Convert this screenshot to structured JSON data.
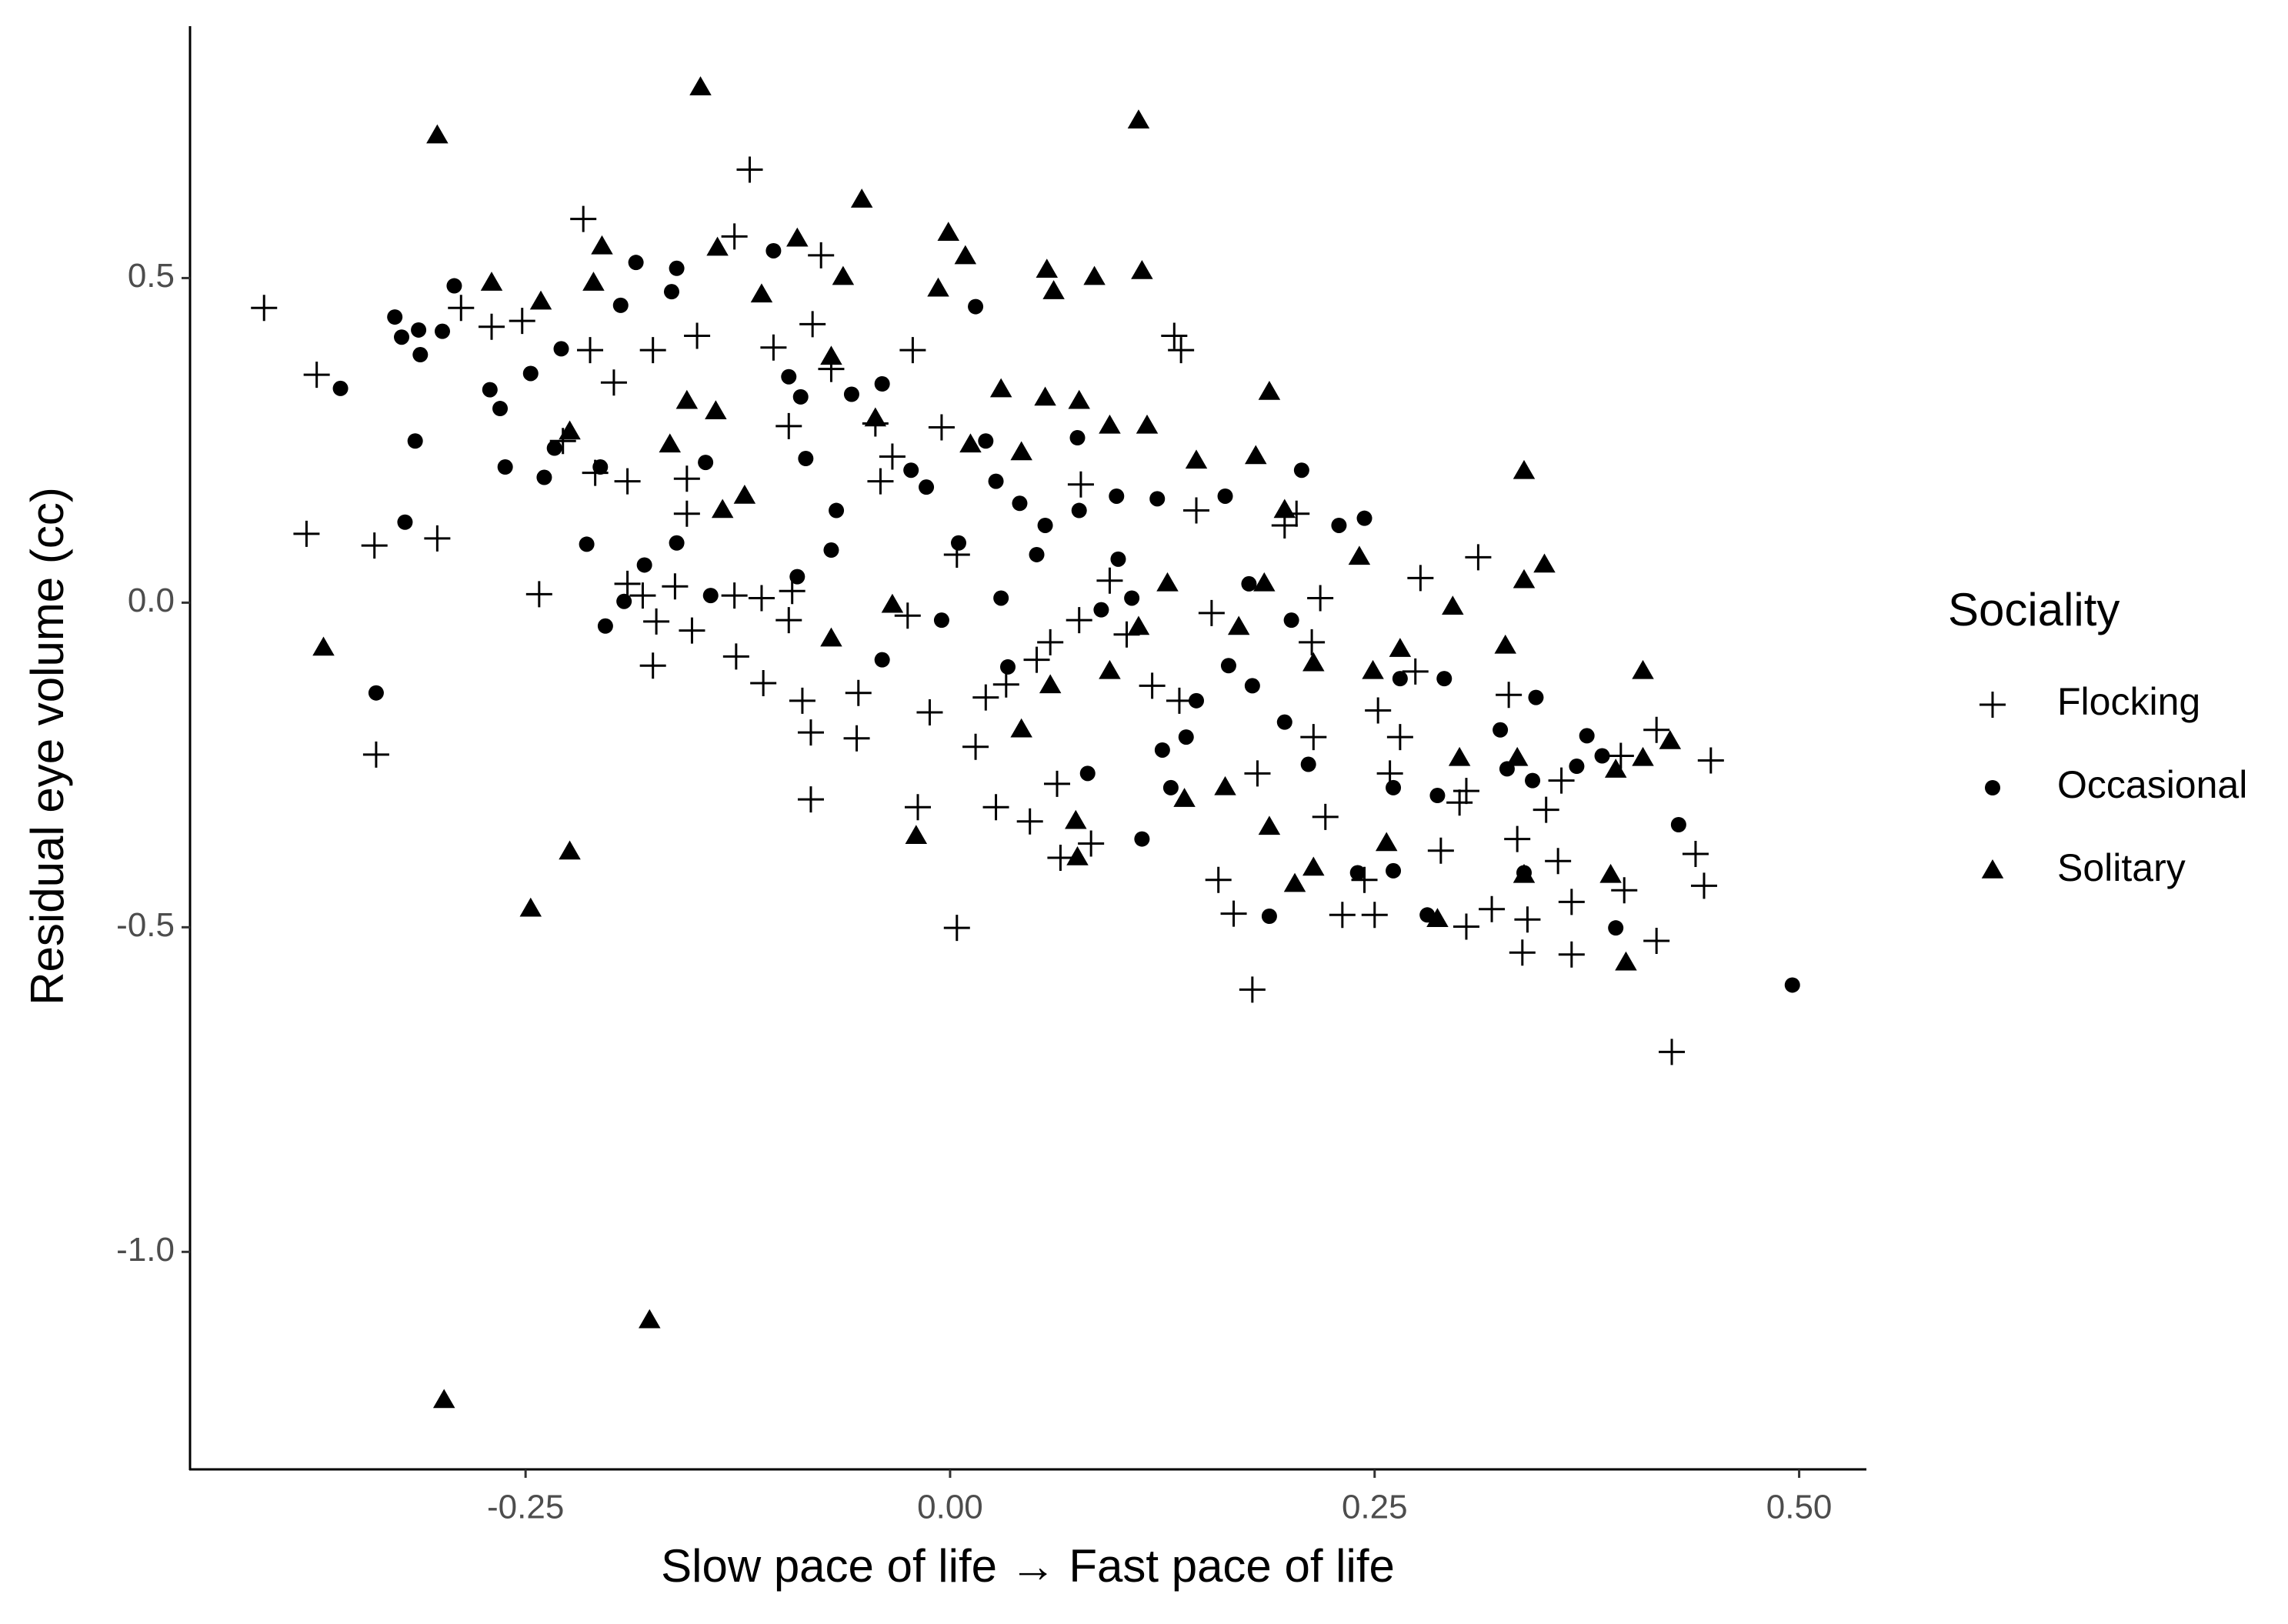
{
  "chart_data": {
    "type": "scatter",
    "x_label": "Slow pace of life → Fast pace of life",
    "y_label": "Residual eye volume (cc)",
    "legend_title": "Sociality",
    "xlim": [
      -0.4476,
      0.5387
    ],
    "ylim": [
      -1.335,
      0.888
    ],
    "xticks": [
      {
        "value": -0.25,
        "label": "-0.25"
      },
      {
        "value": 0,
        "label": "0.00"
      },
      {
        "value": 0.25,
        "label": "0.25"
      },
      {
        "value": 0.5,
        "label": "0.50"
      }
    ],
    "yticks": [
      {
        "value": -1,
        "label": "-1.0"
      },
      -0.5,
      {
        "value": 0,
        "label": "0.0"
      },
      {
        "value": 0.5,
        "label": "0.5"
      }
    ],
    "grid": false,
    "series": [
      {
        "name": "Flocking",
        "marker": "plus",
        "color": "#000000",
        "x": [
          -0.404,
          -0.373,
          -0.379,
          -0.339,
          -0.302,
          -0.338,
          -0.118,
          -0.216,
          -0.127,
          -0.288,
          -0.27,
          -0.252,
          -0.212,
          -0.198,
          -0.175,
          -0.149,
          -0.104,
          -0.081,
          -0.076,
          -0.022,
          -0.005,
          -0.044,
          -0.034,
          -0.041,
          -0.228,
          -0.209,
          -0.19,
          -0.155,
          -0.155,
          -0.242,
          -0.181,
          -0.162,
          -0.173,
          -0.152,
          -0.175,
          -0.127,
          -0.111,
          -0.126,
          -0.11,
          -0.093,
          -0.095,
          -0.087,
          -0.082,
          -0.082,
          -0.054,
          -0.055,
          -0.025,
          -0.012,
          -0.019,
          0.004,
          0.015,
          0.021,
          0.027,
          0.047,
          0.063,
          0.083,
          0.065,
          0.059,
          0.076,
          0.094,
          0.104,
          0.119,
          0.132,
          0.136,
          0.145,
          0.154,
          0.135,
          0.158,
          0.167,
          0.178,
          0.181,
          0.197,
          0.204,
          0.213,
          0.218,
          0.214,
          0.221,
          0.231,
          0.25,
          0.244,
          0.252,
          0.265,
          0.274,
          0.277,
          0.289,
          0.3,
          0.311,
          0.304,
          0.319,
          0.329,
          0.337,
          0.34,
          0.334,
          0.358,
          0.366,
          0.366,
          0.397,
          0.416,
          0.425,
          0.416,
          0.439,
          0.444,
          0.448,
          0.395,
          0.304,
          0.351,
          0.36,
          0.259,
          0.051,
          0.033,
          0.004,
          0.077,
          -0.07,
          -0.095,
          -0.19
        ],
        "y": [
          0.454,
          0.351,
          0.106,
          0.088,
          0.099,
          -0.234,
          0.667,
          0.591,
          0.564,
          0.454,
          0.425,
          0.434,
          0.389,
          0.339,
          0.389,
          0.411,
          0.393,
          0.429,
          0.535,
          0.389,
          0.27,
          0.276,
          0.225,
          0.187,
          0.249,
          0.2,
          0.187,
          0.191,
          0.137,
          0.013,
          0.011,
          0.025,
          -0.029,
          -0.043,
          -0.097,
          0.011,
          0.007,
          -0.083,
          -0.124,
          0.018,
          -0.027,
          -0.151,
          -0.2,
          -0.303,
          -0.139,
          -0.209,
          -0.02,
          -0.169,
          -0.315,
          -0.501,
          -0.222,
          -0.146,
          -0.315,
          -0.337,
          -0.279,
          -0.371,
          -0.393,
          -0.061,
          -0.027,
          0.034,
          -0.049,
          -0.128,
          0.411,
          0.389,
          0.142,
          -0.016,
          -0.151,
          -0.427,
          -0.479,
          -0.596,
          -0.263,
          0.119,
          0.137,
          -0.061,
          0.007,
          -0.207,
          -0.33,
          -0.481,
          -0.481,
          -0.427,
          -0.166,
          -0.207,
          -0.106,
          0.038,
          -0.382,
          -0.308,
          0.07,
          -0.499,
          -0.472,
          -0.142,
          -0.539,
          -0.488,
          -0.364,
          -0.398,
          -0.542,
          -0.461,
          -0.443,
          -0.521,
          -0.692,
          -0.196,
          -0.387,
          -0.436,
          -0.243,
          -0.236,
          -0.29,
          -0.319,
          -0.274,
          -0.263,
          -0.088,
          -0.126,
          0.074,
          0.182,
          0.36,
          0.272,
          0.029
        ]
      },
      {
        "name": "Occasional",
        "marker": "dot",
        "color": "#000000",
        "x": [
          -0.359,
          -0.327,
          -0.323,
          -0.313,
          -0.299,
          -0.292,
          -0.312,
          -0.315,
          -0.321,
          -0.271,
          -0.265,
          -0.262,
          -0.247,
          -0.239,
          -0.233,
          -0.229,
          -0.338,
          -0.214,
          -0.206,
          -0.203,
          -0.192,
          -0.194,
          -0.185,
          -0.18,
          -0.164,
          -0.161,
          -0.161,
          -0.144,
          -0.141,
          -0.104,
          -0.095,
          -0.088,
          -0.085,
          -0.09,
          -0.067,
          -0.07,
          -0.058,
          -0.04,
          -0.04,
          -0.023,
          -0.014,
          -0.005,
          0.005,
          0.015,
          0.021,
          0.027,
          0.034,
          0.03,
          0.041,
          0.051,
          0.056,
          0.075,
          0.076,
          0.081,
          0.089,
          0.098,
          0.099,
          0.107,
          0.113,
          0.122,
          0.125,
          0.13,
          0.139,
          0.145,
          0.162,
          0.164,
          0.176,
          0.178,
          0.188,
          0.197,
          0.201,
          0.207,
          0.211,
          0.229,
          0.244,
          0.24,
          0.261,
          0.261,
          0.265,
          0.291,
          0.287,
          0.281,
          0.324,
          0.328,
          0.338,
          0.345,
          0.343,
          0.375,
          0.384,
          0.392,
          0.429,
          0.496,
          0.369
        ],
        "y": [
          0.33,
          0.44,
          0.409,
          0.42,
          0.418,
          0.488,
          0.382,
          0.249,
          0.124,
          0.328,
          0.299,
          0.209,
          0.353,
          0.193,
          0.238,
          0.391,
          -0.139,
          0.09,
          0.209,
          -0.036,
          0.002,
          0.458,
          0.524,
          0.058,
          0.479,
          0.515,
          0.092,
          0.216,
          0.011,
          0.542,
          0.348,
          0.317,
          0.222,
          0.04,
          0.142,
          0.081,
          0.321,
          0.337,
          -0.088,
          0.204,
          0.178,
          -0.027,
          0.092,
          0.456,
          0.249,
          0.187,
          -0.099,
          0.007,
          0.153,
          0.074,
          0.119,
          0.254,
          0.142,
          -0.263,
          -0.011,
          0.164,
          0.067,
          0.007,
          -0.364,
          0.16,
          -0.227,
          -0.285,
          -0.207,
          -0.151,
          0.164,
          -0.097,
          0.029,
          -0.128,
          -0.483,
          -0.184,
          -0.027,
          0.204,
          -0.249,
          0.119,
          0.13,
          -0.416,
          -0.413,
          -0.285,
          -0.117,
          -0.117,
          -0.297,
          -0.481,
          -0.196,
          -0.256,
          -0.416,
          -0.146,
          -0.274,
          -0.205,
          -0.236,
          -0.501,
          -0.342,
          -0.589,
          -0.252
        ]
      },
      {
        "name": "Solitary",
        "marker": "triangle",
        "color": "#000000",
        "x": [
          -0.302,
          -0.147,
          0.111,
          -0.369,
          -0.298,
          -0.177,
          -0.247,
          -0.224,
          -0.27,
          -0.241,
          -0.205,
          -0.21,
          -0.224,
          -0.165,
          -0.155,
          -0.137,
          -0.138,
          -0.134,
          -0.121,
          -0.111,
          -0.09,
          -0.07,
          -0.063,
          -0.07,
          -0.052,
          -0.044,
          -0.034,
          -0.02,
          -0.007,
          -0.001,
          0.009,
          0.012,
          0.03,
          0.042,
          0.057,
          0.061,
          0.056,
          0.076,
          0.085,
          0.094,
          0.113,
          0.116,
          0.145,
          0.18,
          0.188,
          0.185,
          0.197,
          0.241,
          0.338,
          0.35,
          0.338,
          0.408,
          0.059,
          0.042,
          0.074,
          0.075,
          0.138,
          0.162,
          0.188,
          0.203,
          0.214,
          0.257,
          0.287,
          0.3,
          0.296,
          0.327,
          0.334,
          0.338,
          0.392,
          0.389,
          0.398,
          0.424,
          0.408,
          0.249,
          0.265,
          0.128,
          0.111,
          0.094,
          0.214,
          0.17
        ],
        "y": [
          0.719,
          0.793,
          0.742,
          -0.07,
          -1.229,
          -1.106,
          -0.472,
          -0.384,
          0.492,
          0.463,
          0.548,
          0.492,
          0.263,
          0.243,
          0.31,
          0.546,
          0.294,
          0.142,
          0.164,
          0.474,
          0.56,
          0.378,
          0.501,
          -0.056,
          0.62,
          0.283,
          -0.004,
          -0.36,
          0.483,
          0.569,
          0.533,
          0.243,
          0.328,
          0.231,
          0.512,
          0.479,
          0.315,
          0.31,
          0.501,
          0.272,
          0.51,
          0.272,
          0.218,
          0.225,
          0.324,
          0.029,
          0.142,
          0.07,
          0.202,
          0.058,
          0.034,
          -0.106,
          -0.128,
          -0.196,
          -0.337,
          -0.393,
          -0.303,
          -0.285,
          -0.346,
          -0.434,
          -0.409,
          -0.371,
          -0.488,
          -0.24,
          -0.007,
          -0.067,
          -0.24,
          -0.42,
          -0.258,
          -0.42,
          -0.555,
          -0.214,
          -0.24,
          -0.106,
          -0.072,
          0.029,
          -0.038,
          -0.106,
          -0.094,
          -0.038
        ]
      }
    ]
  }
}
